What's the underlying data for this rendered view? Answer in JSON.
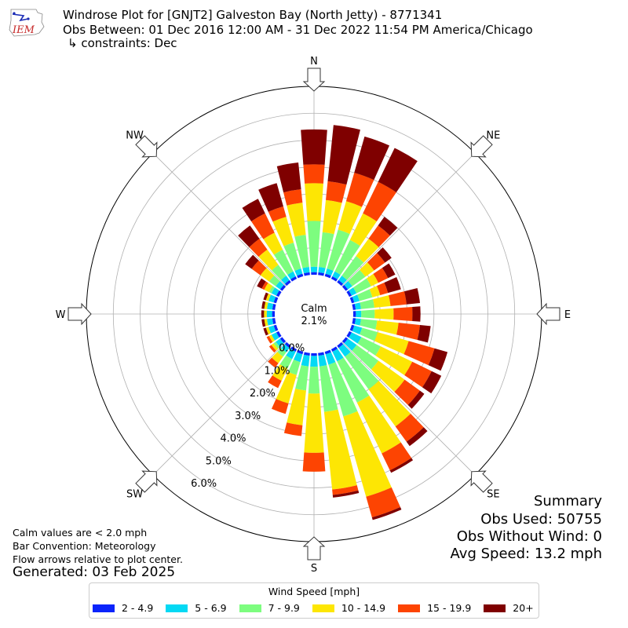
{
  "header": {
    "logo_text": "IEM",
    "title": "Windrose Plot for [GNJT2] Galveston Bay (North Jetty) - 8771341",
    "subtitle": "Obs Between: 01 Dec 2016 12:00 AM - 31 Dec 2022 11:54 PM America/Chicago",
    "constraints": "↳ constraints: Dec"
  },
  "notes": {
    "calm": "Calm values are < 2.0 mph",
    "convention": "Bar Convention: Meteorology",
    "flow": "Flow arrows relative to plot center.",
    "generated": "Generated: 03 Feb 2025"
  },
  "summary": {
    "heading": "Summary",
    "obs_used": "Obs Used: 50755",
    "obs_without_wind": "Obs Without Wind: 0",
    "avg_speed": "Avg Speed: 13.2 mph"
  },
  "legend": {
    "title": "Wind Speed [mph]",
    "items": [
      {
        "label": "2 - 4.9",
        "color": "#0b24fb"
      },
      {
        "label": "5 - 6.9",
        "color": "#04d9f4"
      },
      {
        "label": "7 - 9.9",
        "color": "#7dfd7f"
      },
      {
        "label": "10 - 14.9",
        "color": "#fde604"
      },
      {
        "label": "15 - 19.9",
        "color": "#fd4402"
      },
      {
        "label": "20+",
        "color": "#7f0000"
      }
    ]
  },
  "chart_data": {
    "type": "windrose",
    "calm_label": "Calm",
    "calm_value": "2.1%",
    "radial_ticks": [
      {
        "value": 0,
        "label": "0.0%"
      },
      {
        "value": 1,
        "label": "1.0%"
      },
      {
        "value": 2,
        "label": "2.0%"
      },
      {
        "value": 3,
        "label": "3.0%"
      },
      {
        "value": 4,
        "label": "4.0%"
      },
      {
        "value": 5,
        "label": "5.0%"
      },
      {
        "value": 6,
        "label": "6.0%"
      }
    ],
    "rmax": 7.0,
    "compass": [
      {
        "label": "N",
        "angle": 0
      },
      {
        "label": "NE",
        "angle": 45
      },
      {
        "label": "E",
        "angle": 90
      },
      {
        "label": "SE",
        "angle": 135
      },
      {
        "label": "S",
        "angle": 180
      },
      {
        "label": "SW",
        "angle": 225
      },
      {
        "label": "W",
        "angle": 270
      },
      {
        "label": "NW",
        "angle": 315
      }
    ],
    "speed_bins": [
      "2 - 4.9",
      "5 - 6.9",
      "7 - 9.9",
      "10 - 14.9",
      "15 - 19.9",
      "20+"
    ],
    "directions_deg": [
      0,
      10,
      20,
      30,
      40,
      50,
      60,
      70,
      80,
      90,
      100,
      110,
      120,
      130,
      140,
      150,
      160,
      170,
      180,
      190,
      200,
      210,
      220,
      230,
      240,
      250,
      260,
      270,
      280,
      290,
      300,
      310,
      320,
      330,
      340,
      350
    ],
    "cumulative_pct": [
      [
        0.1,
        0.3,
        2.0,
        3.4,
        4.1,
        5.4
      ],
      [
        0.1,
        0.3,
        1.6,
        2.8,
        3.5,
        5.6
      ],
      [
        0.1,
        0.3,
        1.8,
        2.9,
        4.0,
        5.4
      ],
      [
        0.1,
        0.3,
        1.6,
        2.7,
        4.0,
        5.4
      ],
      [
        0.1,
        0.3,
        1.2,
        2.0,
        2.6,
        3.0
      ],
      [
        0.1,
        0.3,
        0.9,
        1.3,
        1.8,
        2.1
      ],
      [
        0.1,
        0.3,
        0.9,
        1.2,
        1.6,
        1.9
      ],
      [
        0.1,
        0.3,
        0.8,
        1.1,
        1.4,
        1.9
      ],
      [
        0.1,
        0.3,
        0.8,
        1.4,
        2.0,
        2.5
      ],
      [
        0.1,
        0.3,
        0.8,
        1.5,
        2.2,
        2.5
      ],
      [
        0.1,
        0.3,
        0.9,
        1.7,
        2.5,
        2.9
      ],
      [
        0.1,
        0.4,
        1.0,
        2.2,
        3.2,
        3.7
      ],
      [
        0.1,
        0.5,
        1.3,
        2.6,
        3.4,
        3.8
      ],
      [
        0.1,
        0.5,
        1.5,
        2.7,
        3.4,
        3.6
      ],
      [
        0.1,
        0.5,
        2.0,
        3.7,
        4.4,
        4.6
      ],
      [
        0.1,
        0.5,
        2.2,
        4.3,
        5.0,
        5.1
      ],
      [
        0.1,
        0.5,
        2.5,
        5.6,
        6.4,
        6.5
      ],
      [
        0.1,
        0.5,
        2.2,
        5.1,
        5.3,
        5.4
      ],
      [
        0.1,
        0.5,
        1.5,
        3.7,
        4.4,
        4.4
      ],
      [
        0.1,
        0.5,
        1.4,
        2.7,
        3.1,
        3.1
      ],
      [
        0.1,
        0.4,
        0.9,
        2.0,
        2.4,
        2.4
      ],
      [
        0.1,
        0.4,
        0.8,
        1.3,
        1.6,
        1.6
      ],
      [
        0.1,
        0.3,
        0.5,
        0.8,
        1.0,
        1.0
      ],
      [
        0.1,
        0.3,
        0.4,
        0.5,
        0.6,
        0.6
      ],
      [
        0.1,
        0.3,
        0.3,
        0.4,
        0.5,
        0.5
      ],
      [
        0.1,
        0.3,
        0.3,
        0.4,
        0.4,
        0.5
      ],
      [
        0.1,
        0.3,
        0.3,
        0.4,
        0.4,
        0.5
      ],
      [
        0.1,
        0.3,
        0.3,
        0.4,
        0.4,
        0.5
      ],
      [
        0.1,
        0.3,
        0.3,
        0.4,
        0.4,
        0.5
      ],
      [
        0.1,
        0.3,
        0.3,
        0.4,
        0.4,
        0.5
      ],
      [
        0.1,
        0.3,
        0.4,
        0.6,
        0.7,
        0.9
      ],
      [
        0.1,
        0.3,
        0.6,
        1.0,
        1.4,
        1.7
      ],
      [
        0.1,
        0.3,
        0.8,
        1.5,
        2.0,
        2.6
      ],
      [
        0.1,
        0.3,
        1.2,
        1.9,
        2.7,
        3.3
      ],
      [
        0.1,
        0.3,
        1.3,
        2.3,
        2.7,
        3.6
      ],
      [
        0.1,
        0.3,
        1.5,
        2.7,
        3.2,
        4.2
      ]
    ]
  }
}
